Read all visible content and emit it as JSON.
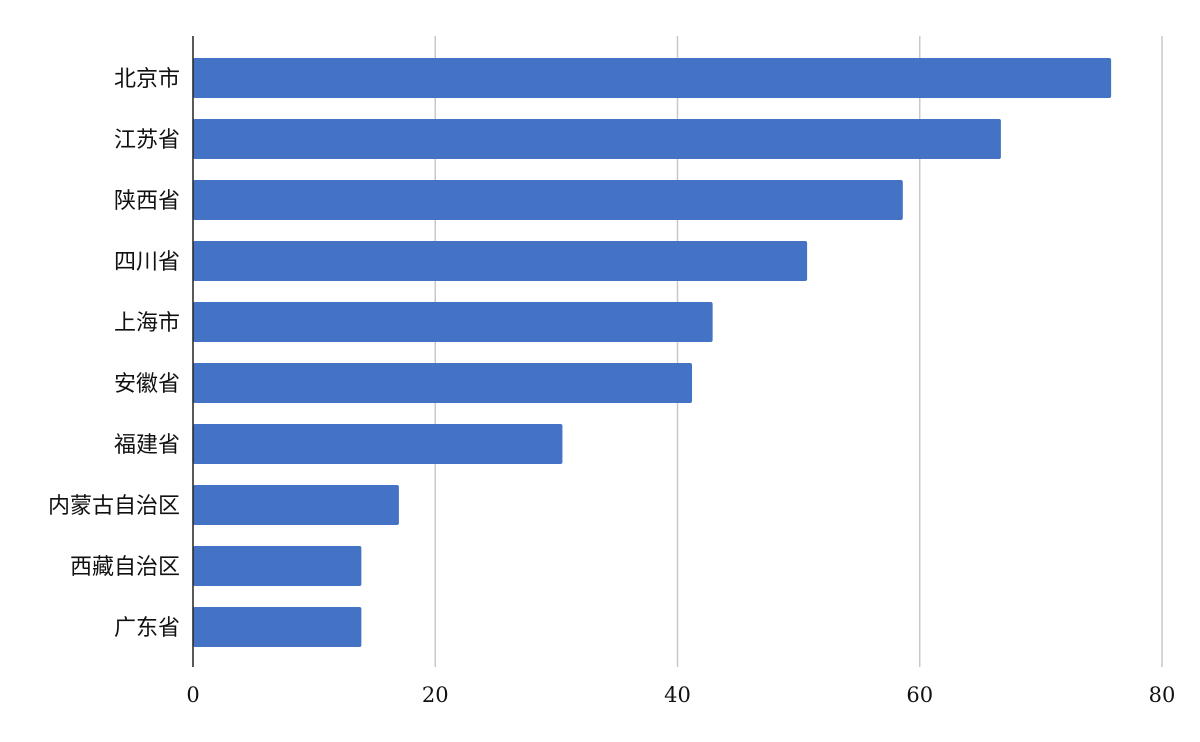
{
  "chart_data": {
    "type": "bar",
    "orientation": "horizontal",
    "categories": [
      "北京市",
      "江苏省",
      "陕西省",
      "四川省",
      "上海市",
      "安徽省",
      "福建省",
      "内蒙古自治区",
      "西藏自治区",
      "广东省"
    ],
    "values": [
      75.8,
      66.7,
      58.6,
      50.7,
      42.9,
      41.2,
      30.5,
      17.0,
      13.9,
      13.9
    ],
    "title": "",
    "xlabel": "",
    "ylabel": "",
    "xlim": [
      0,
      80
    ],
    "xticks": [
      0,
      20,
      40,
      60,
      80
    ],
    "xtick_labels": [
      "0",
      "20",
      "40",
      "60",
      "80"
    ],
    "grid": "vertical",
    "legend": "none",
    "bar_color": "#4472c4"
  }
}
